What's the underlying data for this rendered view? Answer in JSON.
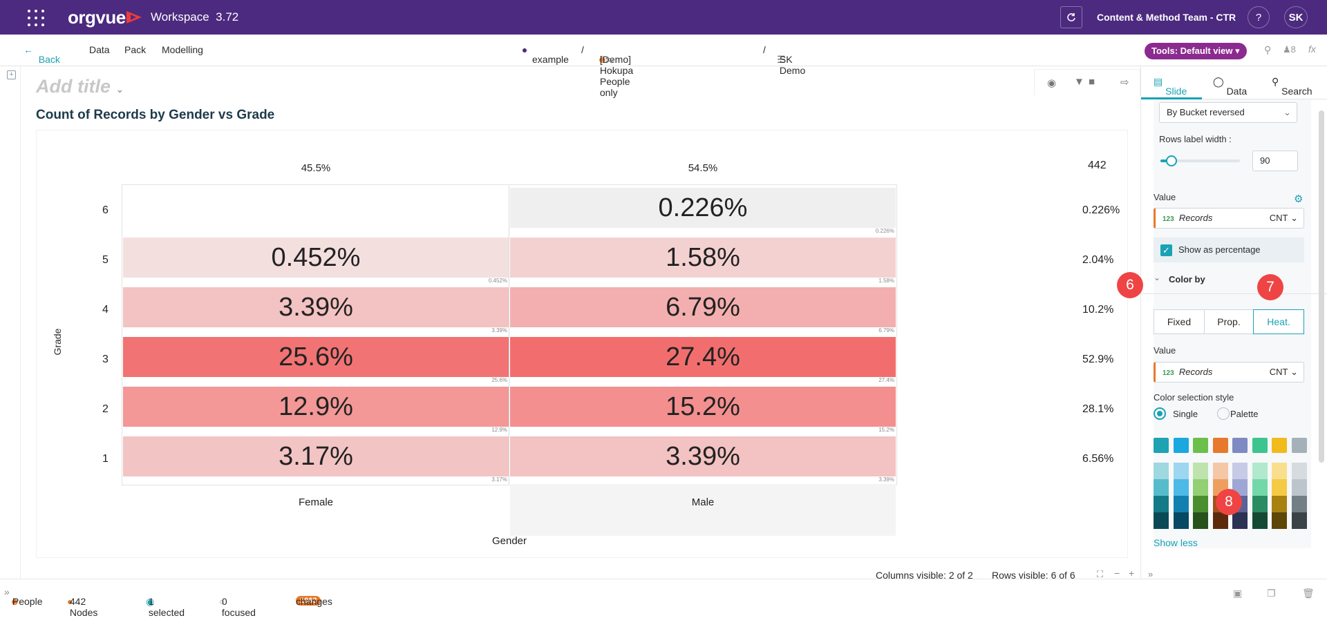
{
  "app": {
    "brand": "orgvue",
    "workspace": "Workspace",
    "version": "3.72",
    "team": "Content & Method Team - CTR",
    "help": "?",
    "avatar": "SK"
  },
  "nav": {
    "back": "Back",
    "data": "Data",
    "pack": "Pack",
    "modelling": "Modelling",
    "crumb1": "example",
    "crumb2": "[Demo] Hokupa People only",
    "crumb3": "SK Demo",
    "sep": "/",
    "tools": "Tools: Default view",
    "pin_count": "8",
    "fx": "fx"
  },
  "title": {
    "placeholder": "Add title"
  },
  "chart_data": {
    "type": "heatmap",
    "title": "Count of Records by Gender vs Grade",
    "xlabel": "Gender",
    "ylabel": "Grade",
    "categories": [
      "Female",
      "Male"
    ],
    "column_totals": [
      "45.5%",
      "54.5%"
    ],
    "grand_total": "442",
    "rows": [
      {
        "grade": "6",
        "values": [
          "",
          "0.226%"
        ],
        "small": [
          "",
          "0.226%"
        ],
        "pct": [
          0,
          0.226
        ],
        "total": "0.226%"
      },
      {
        "grade": "5",
        "values": [
          "0.452%",
          "1.58%"
        ],
        "small": [
          "0.452%",
          "1.58%"
        ],
        "pct": [
          0.452,
          1.58
        ],
        "total": "2.04%"
      },
      {
        "grade": "4",
        "values": [
          "3.39%",
          "6.79%"
        ],
        "small": [
          "3.39%",
          "6.79%"
        ],
        "pct": [
          3.39,
          6.79
        ],
        "total": "10.2%"
      },
      {
        "grade": "3",
        "values": [
          "25.6%",
          "27.4%"
        ],
        "small": [
          "25.6%",
          "27.4%"
        ],
        "pct": [
          25.6,
          27.4
        ],
        "total": "52.9%"
      },
      {
        "grade": "2",
        "values": [
          "12.9%",
          "15.2%"
        ],
        "small": [
          "12.9%",
          "15.2%"
        ],
        "pct": [
          12.9,
          15.2
        ],
        "total": "28.1%"
      },
      {
        "grade": "1",
        "values": [
          "3.17%",
          "3.39%"
        ],
        "small": [
          "3.17%",
          "3.39%"
        ],
        "pct": [
          3.17,
          3.39
        ],
        "total": "6.56%"
      }
    ]
  },
  "panel": {
    "tabs": [
      "Slide",
      "Data",
      "Search"
    ],
    "sort": "By Bucket reversed",
    "rows_label_width_label": "Rows label width :",
    "rows_label_width": "90",
    "rows_label_width_fraction": 0.12,
    "value_label": "Value",
    "field_type": "123",
    "field": "Records",
    "agg": "CNT",
    "show_pct": "Show as percentage",
    "show_pct_checked": true,
    "color_by": "Color by",
    "color_modes": [
      "Fixed",
      "Prop.",
      "Heat."
    ],
    "active_color_mode": "Heat.",
    "value_label2": "Value",
    "color_style_label": "Color selection style",
    "style_single": "Single",
    "style_palette": "Palette",
    "show_less": "Show less",
    "annotations": [
      "6",
      "7",
      "8"
    ],
    "palette_top": [
      "#1ea3b3",
      "#1aa8df",
      "#6cbf4a",
      "#e7782c",
      "#7f8ac3",
      "#3ec48f",
      "#f2bb1c",
      "#a5b1b9"
    ],
    "palette_cols": [
      [
        "#9fd8df",
        "#56bccb",
        "#137a88",
        "#0a4a55"
      ],
      [
        "#9dd6ef",
        "#4cb9e6",
        "#1180b0",
        "#074863"
      ],
      [
        "#bfe3ac",
        "#93cf73",
        "#4b8e2f",
        "#28521b"
      ],
      [
        "#f4c7a6",
        "#ee9f5f",
        "#a3501a",
        "#5c2a0b"
      ],
      [
        "#c7cbe6",
        "#9ea6d3",
        "#5a6396",
        "#2c3253"
      ],
      [
        "#b0e9cd",
        "#73d8a9",
        "#2a8c63",
        "#144a33"
      ],
      [
        "#f9df8d",
        "#f5ca45",
        "#a88110",
        "#5d4607"
      ],
      [
        "#d5dbdf",
        "#bcc5cb",
        "#737e85",
        "#3c4348"
      ]
    ]
  },
  "status": {
    "people": "People",
    "nodes": "442 Nodes",
    "selected": "1 selected",
    "focused": "0 focused",
    "changes_count": "1063",
    "changes": "changes",
    "cols_visible": "Columns visible: 2 of 2",
    "rows_visible": "Rows visible: 6 of 6"
  },
  "colors": {
    "header": "#4b2a7f",
    "accent": "#19a2b3",
    "heat_max": "#f26d6d",
    "pill": "#8c2b8f"
  }
}
